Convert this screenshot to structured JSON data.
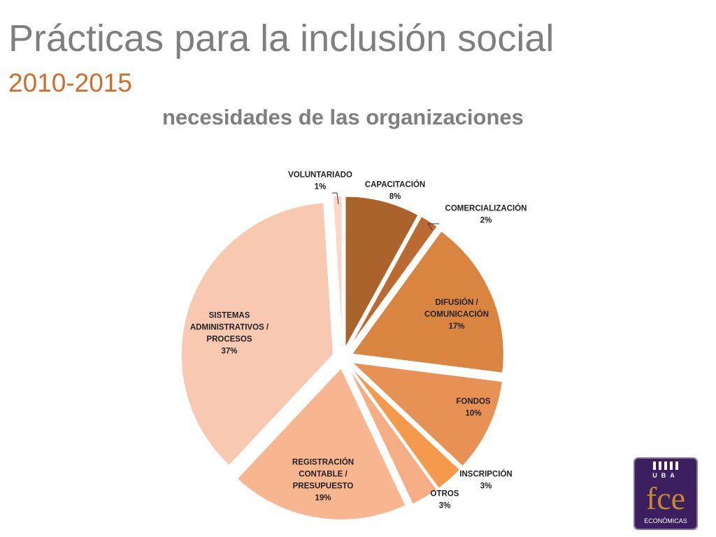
{
  "header": {
    "title": "Prácticas para la inclusión social",
    "years": "2010-2015",
    "subtitle": "necesidades de las organizaciones"
  },
  "logo": {
    "top_text": "UBA",
    "main_text": "fce",
    "bottom_text": "ECONÓMICAS"
  },
  "chart_data": {
    "type": "pie",
    "title": "",
    "exploded": true,
    "slices": [
      {
        "label_lines": [
          "CAPACITACIÓN"
        ],
        "label": "CAPACITACIÓN",
        "pct": "8%",
        "value": 8,
        "color": "#a9632b"
      },
      {
        "label_lines": [
          "COMERCIALIZACIÓN"
        ],
        "label": "COMERCIALIZACIÓN",
        "pct": "2%",
        "value": 2,
        "color": "#bb6b32"
      },
      {
        "label_lines": [
          "DIFUSIÓN /",
          "COMUNICACIÓN"
        ],
        "label": "DIFUSIÓN / COMUNICACIÓN",
        "pct": "17%",
        "value": 17,
        "color": "#d98540"
      },
      {
        "label_lines": [
          "FONDOS"
        ],
        "label": "FONDOS",
        "pct": "10%",
        "value": 10,
        "color": "#e89155"
      },
      {
        "label_lines": [
          "INSCRIPCIÓN"
        ],
        "label": "INSCRIPCIÓN",
        "pct": "3%",
        "value": 3,
        "color": "#f59a4c"
      },
      {
        "label_lines": [
          "OTROS"
        ],
        "label": "OTROS",
        "pct": "3%",
        "value": 3,
        "color": "#f5ad83"
      },
      {
        "label_lines": [
          "REGISTRACIÓN",
          "CONTABLE /",
          "PRESUPUESTO"
        ],
        "label": "REGISTRACIÓN CONTABLE / PRESUPUESTO",
        "pct": "19%",
        "value": 19,
        "color": "#f7b690"
      },
      {
        "label_lines": [
          "SISTEMAS",
          "ADMINISTRATIVOS /",
          "PROCESOS"
        ],
        "label": "SISTEMAS ADMINISTRATIVOS / PROCESOS",
        "pct": "37%",
        "value": 37,
        "color": "#f8c8b0"
      },
      {
        "label_lines": [
          "VOLUNTARIADO"
        ],
        "label": "VOLUNTARIADO",
        "pct": "1%",
        "value": 1,
        "color": "#fbd7c6"
      }
    ]
  }
}
